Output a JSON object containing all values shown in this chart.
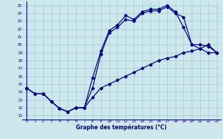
{
  "title": "Graphe des températures (°C)",
  "bg_color": "#cce8ec",
  "grid_color": "#a8cdd4",
  "line_color": "#00008b",
  "xlim": [
    -0.5,
    23.5
  ],
  "ylim": [
    10.5,
    25.5
  ],
  "xticks": [
    0,
    1,
    2,
    3,
    4,
    5,
    6,
    7,
    8,
    9,
    10,
    11,
    12,
    13,
    14,
    15,
    16,
    17,
    18,
    19,
    20,
    21,
    22,
    23
  ],
  "yticks": [
    11,
    12,
    13,
    14,
    15,
    16,
    17,
    18,
    19,
    20,
    21,
    22,
    23,
    24,
    25
  ],
  "line1_x": [
    0,
    1,
    2,
    3,
    4,
    5,
    6,
    7,
    8,
    9,
    10,
    11,
    12,
    13,
    14,
    15,
    16,
    17,
    18,
    19,
    20,
    21,
    22,
    23
  ],
  "line1_y": [
    14.5,
    13.8,
    13.8,
    12.8,
    11.9,
    11.5,
    12.0,
    12.0,
    13.3,
    14.5,
    15.0,
    15.5,
    16.0,
    16.5,
    17.0,
    17.5,
    18.0,
    18.3,
    18.5,
    19.0,
    19.2,
    19.5,
    19.0,
    19.0
  ],
  "line2_x": [
    0,
    1,
    2,
    3,
    4,
    5,
    6,
    7,
    8,
    9,
    10,
    11,
    12,
    13,
    14,
    15,
    16,
    17,
    18,
    19,
    20,
    21,
    22,
    23
  ],
  "line2_y": [
    14.5,
    13.8,
    13.8,
    12.8,
    11.9,
    11.5,
    12.0,
    12.0,
    15.8,
    19.2,
    21.8,
    22.5,
    23.7,
    23.2,
    24.2,
    24.5,
    24.5,
    25.0,
    24.2,
    22.2,
    20.0,
    20.0,
    19.8,
    19.0
  ],
  "line3_x": [
    0,
    1,
    2,
    3,
    4,
    5,
    6,
    7,
    8,
    9,
    10,
    11,
    12,
    13,
    14,
    15,
    16,
    17,
    18,
    19,
    20,
    21,
    22,
    23
  ],
  "line3_y": [
    14.5,
    13.8,
    13.8,
    12.8,
    11.9,
    11.5,
    12.0,
    12.0,
    14.5,
    18.8,
    21.5,
    22.2,
    23.2,
    23.0,
    24.0,
    24.3,
    24.3,
    24.8,
    24.0,
    23.5,
    20.0,
    19.5,
    20.0,
    19.0
  ]
}
